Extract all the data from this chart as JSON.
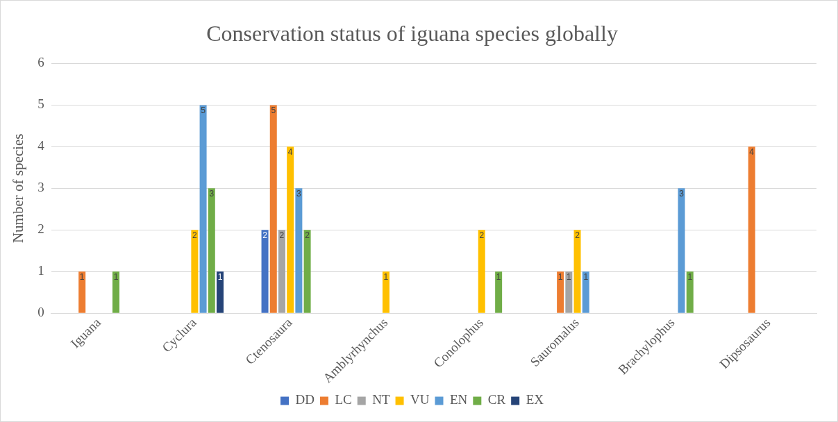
{
  "chart_data": {
    "type": "bar",
    "title": "Conservation status of iguana species globally",
    "ylabel": "Number of species",
    "categories": [
      "Iguana",
      "Cyclura",
      "Ctenosaura",
      "Amblyrhynchus",
      "Conolophus",
      "Sauromalus",
      "Brachylophus",
      "Dipsosaurus"
    ],
    "series": [
      {
        "name": "DD",
        "color": "#4472c4",
        "values": [
          null,
          null,
          2,
          null,
          null,
          null,
          null,
          null
        ]
      },
      {
        "name": "LC",
        "color": "#ed7d31",
        "values": [
          1,
          null,
          5,
          null,
          null,
          1,
          null,
          4
        ]
      },
      {
        "name": "NT",
        "color": "#a5a5a5",
        "values": [
          null,
          null,
          2,
          null,
          null,
          1,
          null,
          null
        ]
      },
      {
        "name": "VU",
        "color": "#ffc000",
        "values": [
          null,
          2,
          4,
          1,
          2,
          2,
          null,
          null
        ]
      },
      {
        "name": "EN",
        "color": "#5b9bd5",
        "values": [
          null,
          5,
          3,
          null,
          null,
          1,
          3,
          null
        ]
      },
      {
        "name": "CR",
        "color": "#70ad47",
        "values": [
          1,
          3,
          2,
          null,
          1,
          null,
          1,
          null
        ]
      },
      {
        "name": "EX",
        "color": "#264478",
        "values": [
          null,
          1,
          null,
          null,
          null,
          null,
          null,
          null
        ]
      }
    ],
    "ylim": [
      0,
      6
    ],
    "yticks": [
      0,
      1,
      2,
      3,
      4,
      5,
      6
    ],
    "grid": "y",
    "legend": "bottom",
    "data_labels": true
  }
}
